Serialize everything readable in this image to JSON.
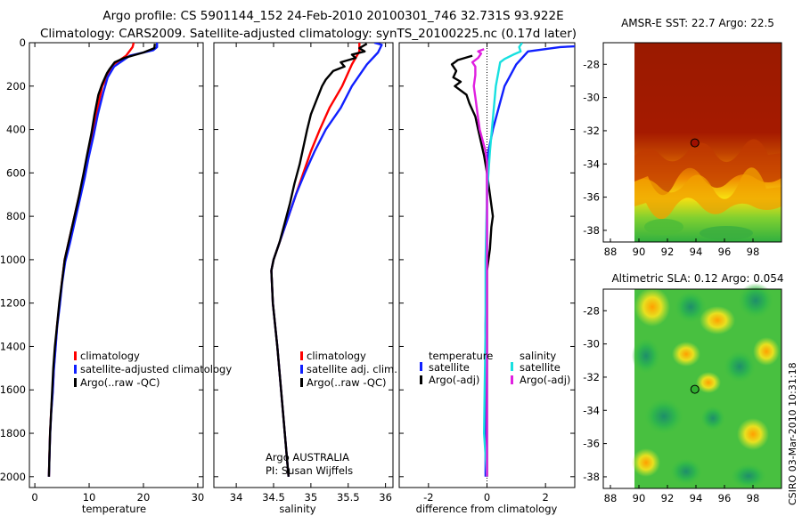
{
  "header": {
    "title_line1": "Argo profile: CS 5901144_152 24-Feb-2010 20100301_746 32.731S 93.922E",
    "title_line2": "Climatology: CARS2009. Satellite-adjusted climatology: synTS_20100225.nc (0.17d later)"
  },
  "footer": {
    "timestamp": "CSIRO 03-Mar-2010 10:31:18",
    "argo_label": "Argo AUSTRALIA",
    "pi_label": "PI: Susan Wijffels"
  },
  "colors": {
    "climatology": "#ff0000",
    "satellite": "#1020ff",
    "argo": "#000000",
    "sal_satellite": "#18e0e0",
    "sal_argo": "#e020e0"
  },
  "chart_data": [
    {
      "type": "line",
      "name": "temperature_profile",
      "xlabel": "temperature",
      "xlim": [
        -1,
        31
      ],
      "ylim": [
        2050,
        0
      ],
      "xticks": [
        0,
        10,
        20,
        30
      ],
      "yticks": [
        0,
        200,
        400,
        600,
        800,
        1000,
        1200,
        1400,
        1600,
        1800,
        2000
      ],
      "legend": [
        "climatology",
        "satellite-adjusted climatology",
        "Argo(..raw -QC)"
      ],
      "series": [
        {
          "name": "climatology",
          "color_key": "climatology",
          "points": [
            [
              18.2,
              0
            ],
            [
              18,
              20
            ],
            [
              16.8,
              60
            ],
            [
              14.5,
              100
            ],
            [
              13.4,
              150
            ],
            [
              12.4,
              200
            ],
            [
              11.6,
              300
            ],
            [
              10.7,
              400
            ],
            [
              9.9,
              500
            ],
            [
              9.1,
              600
            ],
            [
              8.2,
              700
            ],
            [
              7.3,
              800
            ],
            [
              6.4,
              900
            ],
            [
              5.5,
              1000
            ],
            [
              5,
              1100
            ],
            [
              4.6,
              1200
            ],
            [
              4.1,
              1300
            ],
            [
              3.8,
              1400
            ],
            [
              3.5,
              1500
            ],
            [
              3.3,
              1600
            ],
            [
              3,
              1700
            ],
            [
              2.8,
              1800
            ],
            [
              2.7,
              1900
            ],
            [
              2.6,
              2000
            ]
          ]
        },
        {
          "name": "satellite",
          "color_key": "satellite",
          "points": [
            [
              22.5,
              0
            ],
            [
              22.5,
              20
            ],
            [
              21.8,
              35
            ],
            [
              17.5,
              60
            ],
            [
              14.6,
              110
            ],
            [
              13.4,
              160
            ],
            [
              12.6,
              230
            ],
            [
              11.6,
              330
            ],
            [
              10.8,
              430
            ],
            [
              9.9,
              530
            ],
            [
              9.2,
              620
            ],
            [
              8.3,
              720
            ],
            [
              7.4,
              820
            ],
            [
              6.5,
              920
            ],
            [
              5.6,
              1010
            ],
            [
              5,
              1110
            ],
            [
              4.6,
              1210
            ],
            [
              4.1,
              1310
            ],
            [
              3.8,
              1410
            ],
            [
              3.5,
              1510
            ],
            [
              3.3,
              1610
            ],
            [
              3,
              1710
            ],
            [
              2.8,
              1810
            ],
            [
              2.7,
              1910
            ],
            [
              2.6,
              2000
            ]
          ]
        },
        {
          "name": "argo",
          "color_key": "argo",
          "points": [
            [
              22.1,
              5
            ],
            [
              22,
              25
            ],
            [
              20,
              45
            ],
            [
              16.5,
              70
            ],
            [
              14.7,
              90
            ],
            [
              13.8,
              120
            ],
            [
              13.3,
              140
            ],
            [
              12.4,
              190
            ],
            [
              11.7,
              240
            ],
            [
              11,
              330
            ],
            [
              10.4,
              420
            ],
            [
              9.6,
              520
            ],
            [
              9,
              600
            ],
            [
              8.1,
              710
            ],
            [
              7.2,
              810
            ],
            [
              6.4,
              900
            ],
            [
              5.5,
              1000
            ],
            [
              5,
              1100
            ],
            [
              4.5,
              1200
            ],
            [
              4.1,
              1300
            ],
            [
              3.7,
              1400
            ],
            [
              3.4,
              1500
            ],
            [
              3.2,
              1600
            ],
            [
              3,
              1700
            ],
            [
              2.8,
              1800
            ],
            [
              2.7,
              1900
            ],
            [
              2.6,
              2000
            ]
          ]
        }
      ]
    },
    {
      "type": "line",
      "name": "salinity_profile",
      "xlabel": "salinity",
      "xlim": [
        33.7,
        36.1
      ],
      "ylim": [
        2050,
        0
      ],
      "xticks": [
        34,
        34.5,
        35,
        35.5,
        36
      ],
      "legend": [
        "climatology",
        "satellite adj. clim.",
        "Argo(..raw -QC)"
      ],
      "series": [
        {
          "name": "climatology",
          "color_key": "climatology",
          "points": [
            [
              35.65,
              0
            ],
            [
              35.65,
              40
            ],
            [
              35.55,
              100
            ],
            [
              35.42,
              200
            ],
            [
              35.25,
              300
            ],
            [
              35.12,
              400
            ],
            [
              35,
              500
            ],
            [
              34.9,
              600
            ],
            [
              34.8,
              700
            ],
            [
              34.7,
              800
            ],
            [
              34.6,
              900
            ],
            [
              34.5,
              1000
            ],
            [
              34.47,
              1050
            ],
            [
              34.49,
              1200
            ],
            [
              34.55,
              1400
            ],
            [
              34.6,
              1600
            ],
            [
              34.65,
              1800
            ],
            [
              34.7,
              2000
            ]
          ]
        },
        {
          "name": "satellite",
          "color_key": "satellite",
          "points": [
            [
              35.85,
              0
            ],
            [
              35.95,
              10
            ],
            [
              35.9,
              45
            ],
            [
              35.75,
              100
            ],
            [
              35.55,
              200
            ],
            [
              35.4,
              300
            ],
            [
              35.2,
              400
            ],
            [
              35.05,
              500
            ],
            [
              34.92,
              600
            ],
            [
              34.8,
              700
            ],
            [
              34.7,
              800
            ],
            [
              34.6,
              900
            ],
            [
              34.5,
              1000
            ],
            [
              34.47,
              1050
            ],
            [
              34.49,
              1200
            ],
            [
              34.55,
              1400
            ],
            [
              34.6,
              1600
            ],
            [
              34.65,
              1800
            ],
            [
              34.7,
              2000
            ]
          ]
        },
        {
          "name": "argo",
          "color_key": "argo",
          "points": [
            [
              35.75,
              5
            ],
            [
              35.65,
              25
            ],
            [
              35.72,
              40
            ],
            [
              35.55,
              55
            ],
            [
              35.6,
              70
            ],
            [
              35.4,
              90
            ],
            [
              35.45,
              110
            ],
            [
              35.3,
              130
            ],
            [
              35.2,
              170
            ],
            [
              35.15,
              200
            ],
            [
              35.08,
              260
            ],
            [
              35,
              330
            ],
            [
              34.95,
              400
            ],
            [
              34.9,
              480
            ],
            [
              34.85,
              560
            ],
            [
              34.78,
              650
            ],
            [
              34.72,
              740
            ],
            [
              34.65,
              830
            ],
            [
              34.58,
              920
            ],
            [
              34.5,
              1000
            ],
            [
              34.47,
              1050
            ],
            [
              34.49,
              1200
            ],
            [
              34.55,
              1400
            ],
            [
              34.6,
              1600
            ],
            [
              34.65,
              1800
            ],
            [
              34.7,
              2000
            ]
          ]
        }
      ]
    },
    {
      "type": "line",
      "name": "difference_profile",
      "xlabel": "difference from climatology",
      "xlim": [
        -3,
        3
      ],
      "ylim": [
        2050,
        0
      ],
      "xticks": [
        -2,
        0,
        2
      ],
      "zero_line": 0,
      "legend_temperature_header": "temperature",
      "legend_salinity_header": "salinity",
      "legend_temperature": [
        "satellite",
        "Argo(-adj)"
      ],
      "legend_salinity": [
        "satellite",
        "Argo(-adj)"
      ],
      "series": [
        {
          "name": "temp_satellite",
          "color_key": "satellite",
          "points": [
            [
              4.5,
              0
            ],
            [
              4,
              10
            ],
            [
              2.5,
              20
            ],
            [
              1.4,
              40
            ],
            [
              1,
              100
            ],
            [
              0.8,
              150
            ],
            [
              0.6,
              200
            ],
            [
              0.4,
              300
            ],
            [
              0.2,
              400
            ],
            [
              0.05,
              500
            ],
            [
              0,
              600
            ],
            [
              0,
              1000
            ],
            [
              -0.05,
              1300
            ],
            [
              -0.05,
              2000
            ]
          ]
        },
        {
          "name": "temp_argo",
          "color_key": "argo",
          "points": [
            [
              -0.5,
              60
            ],
            [
              -1,
              80
            ],
            [
              -1.2,
              100
            ],
            [
              -1.05,
              130
            ],
            [
              -1.15,
              160
            ],
            [
              -0.9,
              180
            ],
            [
              -1.1,
              200
            ],
            [
              -0.7,
              240
            ],
            [
              -0.6,
              280
            ],
            [
              -0.4,
              340
            ],
            [
              -0.3,
              400
            ],
            [
              -0.2,
              460
            ],
            [
              -0.1,
              520
            ],
            [
              0,
              600
            ],
            [
              0.1,
              700
            ],
            [
              0.2,
              800
            ],
            [
              0.15,
              850
            ],
            [
              0.1,
              950
            ],
            [
              0,
              1050
            ],
            [
              0,
              2000
            ]
          ]
        },
        {
          "name": "sal_satellite",
          "color_key": "sal_satellite",
          "points": [
            [
              1.2,
              0
            ],
            [
              1.1,
              20
            ],
            [
              1.15,
              40
            ],
            [
              0.9,
              55
            ],
            [
              0.6,
              75
            ],
            [
              0.45,
              90
            ],
            [
              0.3,
              200
            ],
            [
              0.2,
              350
            ],
            [
              0.1,
              500
            ],
            [
              0,
              700
            ],
            [
              -0.05,
              1000
            ],
            [
              -0.05,
              1300
            ],
            [
              -0.1,
              1800
            ],
            [
              0,
              2000
            ]
          ]
        },
        {
          "name": "sal_argo",
          "color_key": "sal_argo",
          "points": [
            [
              -0.1,
              30
            ],
            [
              -0.3,
              40
            ],
            [
              -0.2,
              50
            ],
            [
              -0.3,
              70
            ],
            [
              -0.5,
              90
            ],
            [
              -0.4,
              110
            ],
            [
              -0.4,
              150
            ],
            [
              -0.45,
              200
            ],
            [
              -0.4,
              250
            ],
            [
              -0.35,
              300
            ],
            [
              -0.3,
              350
            ],
            [
              -0.25,
              400
            ],
            [
              -0.15,
              450
            ],
            [
              -0.05,
              500
            ],
            [
              0,
              550
            ],
            [
              0,
              2000
            ]
          ]
        }
      ]
    },
    {
      "type": "heatmap",
      "name": "amsr_sst_map",
      "title": "AMSR-E SST: 22.7 Argo: 22.5",
      "xlim": [
        87.5,
        100
      ],
      "ylim": [
        -38.7,
        -26.7
      ],
      "xticks": [
        88,
        90,
        92,
        94,
        96,
        98
      ],
      "yticks": [
        -28,
        -30,
        -32,
        -34,
        -36,
        -38
      ],
      "data_xlim": [
        90,
        100
      ],
      "argo_position": [
        93.922,
        -32.731
      ],
      "marker_color": "#a01000"
    },
    {
      "type": "heatmap",
      "name": "altimetric_sla_map",
      "title": "Altimetric SLA: 0.12 Argo: 0.054",
      "xlim": [
        87.5,
        100
      ],
      "ylim": [
        -38.7,
        -26.7
      ],
      "xticks": [
        88,
        90,
        92,
        94,
        96,
        98
      ],
      "yticks": [
        -28,
        -30,
        -32,
        -34,
        -36,
        -38
      ],
      "data_xlim": [
        90,
        100
      ],
      "argo_position": [
        93.922,
        -32.731
      ],
      "marker_color": "#30b030"
    }
  ]
}
